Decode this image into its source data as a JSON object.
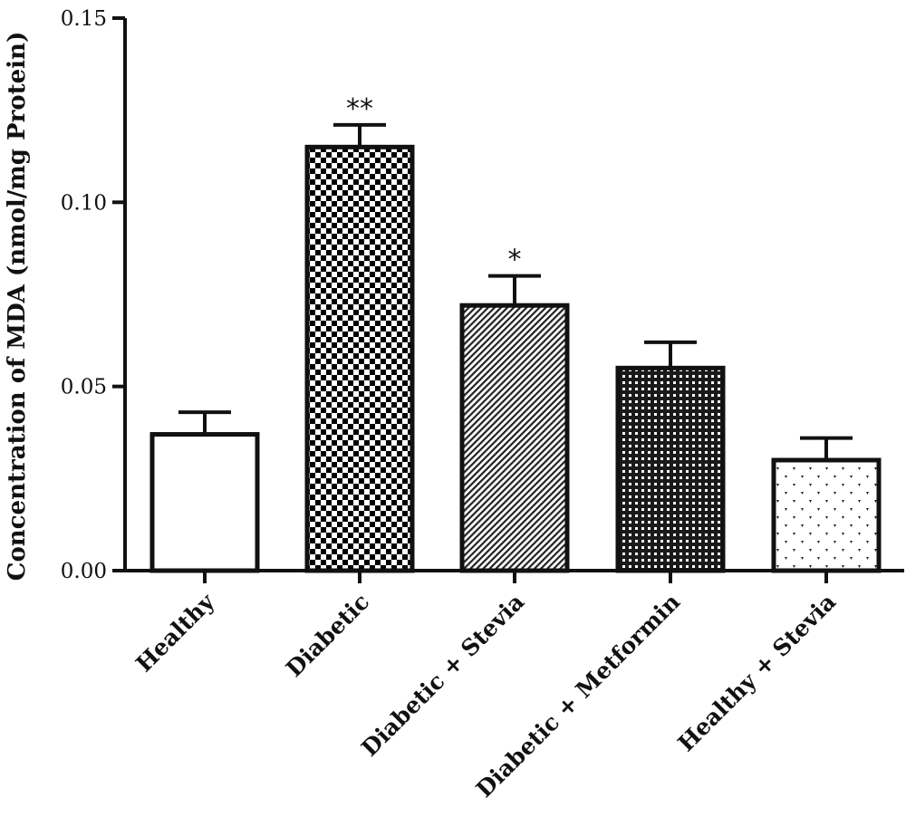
{
  "chart_data": {
    "type": "bar",
    "title": "",
    "xlabel": "",
    "ylabel": "Concentration of MDA (nmol/mg Protein)",
    "ylim": [
      0,
      0.15
    ],
    "yticks": [
      "0.00",
      "0.05",
      "0.10",
      "0.15"
    ],
    "grid": false,
    "categories": [
      "Healthy",
      "Diabetic",
      "Diabetic + Stevia",
      "Diabetic + Metformin",
      "Healthy + Stevia"
    ],
    "values": [
      0.037,
      0.115,
      0.072,
      0.055,
      0.03
    ],
    "errors": [
      0.006,
      0.006,
      0.008,
      0.007,
      0.006
    ],
    "annotations": [
      "",
      "**",
      "*",
      "",
      ""
    ],
    "fill_patterns": [
      "solid-white",
      "checkerboard",
      "diagonal-hatch",
      "dense-grid",
      "sparse-dots"
    ]
  }
}
